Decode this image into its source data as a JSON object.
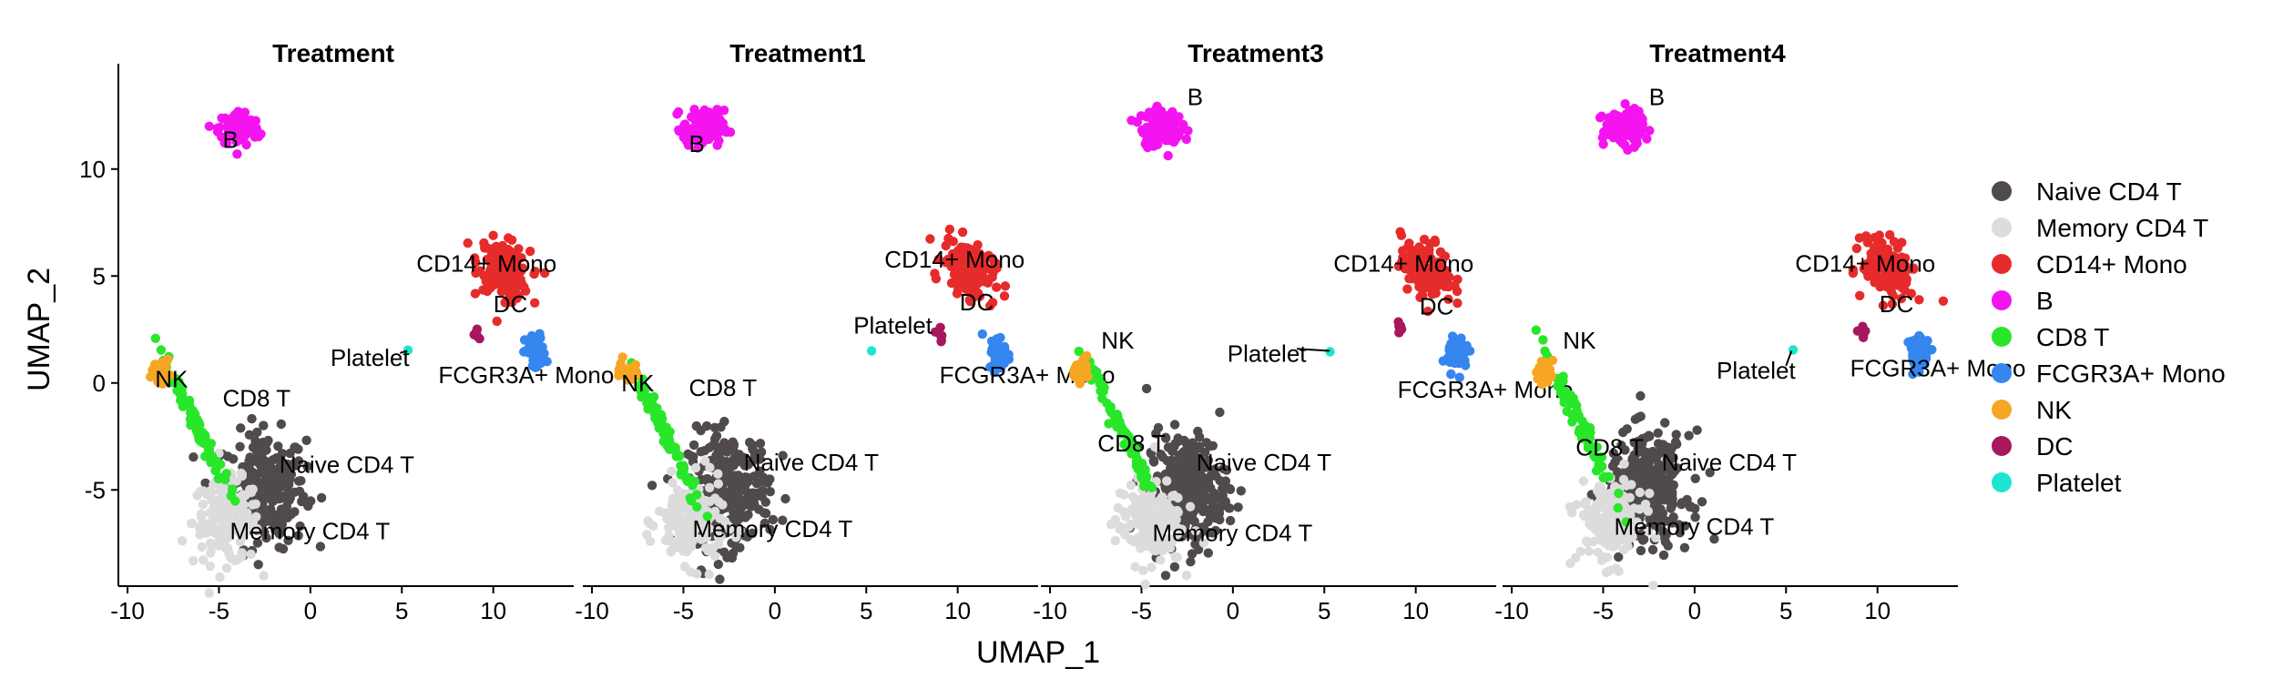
{
  "chart_data": {
    "type": "scatter",
    "xlabel": "UMAP_1",
    "ylabel": "UMAP_2",
    "xlim": [
      -10.5,
      14
    ],
    "ylim": [
      -9.5,
      14.5
    ],
    "xticks": [
      "-10",
      "-5",
      "0",
      "5",
      "10"
    ],
    "yticks": [
      "-5",
      "0",
      "5",
      "10"
    ],
    "legend_position": "right",
    "clusters": [
      {
        "name": "Naive CD4 T",
        "color": "#504A4B",
        "center": [
          -2.5,
          -5
        ],
        "spread": [
          1.6,
          1.9
        ],
        "n": 260
      },
      {
        "name": "Memory CD4 T",
        "color": "#DCDCDC",
        "center": [
          -4.6,
          -6.5
        ],
        "spread": [
          1.3,
          1.4
        ],
        "n": 170
      },
      {
        "name": "CD14+ Mono",
        "color": "#E62B2B",
        "center": [
          10.6,
          5.3
        ],
        "spread": [
          1.0,
          0.9
        ],
        "n": 150
      },
      {
        "name": "B",
        "color": "#F414F0",
        "center": [
          -3.9,
          11.9
        ],
        "spread": [
          0.8,
          0.6
        ],
        "n": 110
      },
      {
        "name": "CD8 T",
        "color": "#29E62B",
        "center": [
          -6.2,
          -2
        ],
        "spread": [
          0.6,
          1.2
        ],
        "n": 80
      },
      {
        "name": "FCGR3A+ Mono",
        "color": "#3586EE",
        "center": [
          12.3,
          1.4
        ],
        "spread": [
          0.4,
          0.6
        ],
        "n": 55
      },
      {
        "name": "NK",
        "color": "#F6A623",
        "center": [
          -8.2,
          0.6
        ],
        "spread": [
          0.35,
          0.35
        ],
        "n": 30
      },
      {
        "name": "DC",
        "color": "#A7175F",
        "center": [
          9.1,
          2.3
        ],
        "spread": [
          0.2,
          0.3
        ],
        "n": 6
      },
      {
        "name": "Platelet",
        "color": "#1CE6CF",
        "center": [
          5.3,
          1.5
        ],
        "spread": [
          0.05,
          0.05
        ],
        "n": 1
      }
    ],
    "panels": [
      {
        "title": "Treatment",
        "labels": [
          {
            "text": "B",
            "x": -4.8,
            "y": 11.0
          },
          {
            "text": "CD14+ Mono",
            "x": 5.8,
            "y": 5.2
          },
          {
            "text": "DC",
            "x": 10.0,
            "y": 3.3
          },
          {
            "text": "Platelet",
            "x": 1.1,
            "y": 0.8
          },
          {
            "text": "FCGR3A+ Mono",
            "x": 7.0,
            "y": 0.0
          },
          {
            "text": "NK",
            "x": -8.5,
            "y": -0.2
          },
          {
            "text": "CD8 T",
            "x": -4.8,
            "y": -1.1
          },
          {
            "text": "Naive CD4 T",
            "x": -1.7,
            "y": -4.2
          },
          {
            "text": "Memory CD4 T",
            "x": -4.4,
            "y": -7.3
          }
        ]
      },
      {
        "title": "Treatment1",
        "labels": [
          {
            "text": "B",
            "x": -4.7,
            "y": 10.8
          },
          {
            "text": "CD14+ Mono",
            "x": 6.0,
            "y": 5.4
          },
          {
            "text": "DC",
            "x": 10.1,
            "y": 3.4
          },
          {
            "text": "Platelet",
            "x": 4.3,
            "y": 2.3
          },
          {
            "text": "FCGR3A+ Mono",
            "x": 9.0,
            "y": 0.0
          },
          {
            "text": "NK",
            "x": -8.4,
            "y": -0.4
          },
          {
            "text": "CD8 T",
            "x": -4.7,
            "y": -0.6
          },
          {
            "text": "Naive CD4 T",
            "x": -1.7,
            "y": -4.1
          },
          {
            "text": "Memory CD4 T",
            "x": -4.5,
            "y": -7.2
          }
        ]
      },
      {
        "title": "Treatment3",
        "labels": [
          {
            "text": "B",
            "x": -2.5,
            "y": 13.0
          },
          {
            "text": "CD14+ Mono",
            "x": 5.5,
            "y": 5.2
          },
          {
            "text": "DC",
            "x": 10.2,
            "y": 3.2
          },
          {
            "text": "Platelet",
            "x": -0.3,
            "y": 1.0
          },
          {
            "text": "FCGR3A+ Mono",
            "x": 9.0,
            "y": -0.7
          },
          {
            "text": "NK",
            "x": -7.2,
            "y": 1.6
          },
          {
            "text": "CD8 T",
            "x": -7.4,
            "y": -3.2
          },
          {
            "text": "Naive CD4 T",
            "x": -2.0,
            "y": -4.1
          },
          {
            "text": "Memory CD4 T",
            "x": -4.4,
            "y": -7.4
          }
        ]
      },
      {
        "title": "Treatment4",
        "labels": [
          {
            "text": "B",
            "x": -2.5,
            "y": 13.0
          },
          {
            "text": "CD14+ Mono",
            "x": 5.5,
            "y": 5.2
          },
          {
            "text": "DC",
            "x": 10.1,
            "y": 3.3
          },
          {
            "text": "Platelet",
            "x": 1.2,
            "y": 0.2
          },
          {
            "text": "FCGR3A+ Mono",
            "x": 8.5,
            "y": 0.3
          },
          {
            "text": "NK",
            "x": -7.2,
            "y": 1.6
          },
          {
            "text": "CD8 T",
            "x": -6.5,
            "y": -3.4
          },
          {
            "text": "Naive CD4 T",
            "x": -1.8,
            "y": -4.1
          },
          {
            "text": "Memory CD4 T",
            "x": -4.4,
            "y": -7.1
          }
        ]
      }
    ]
  }
}
